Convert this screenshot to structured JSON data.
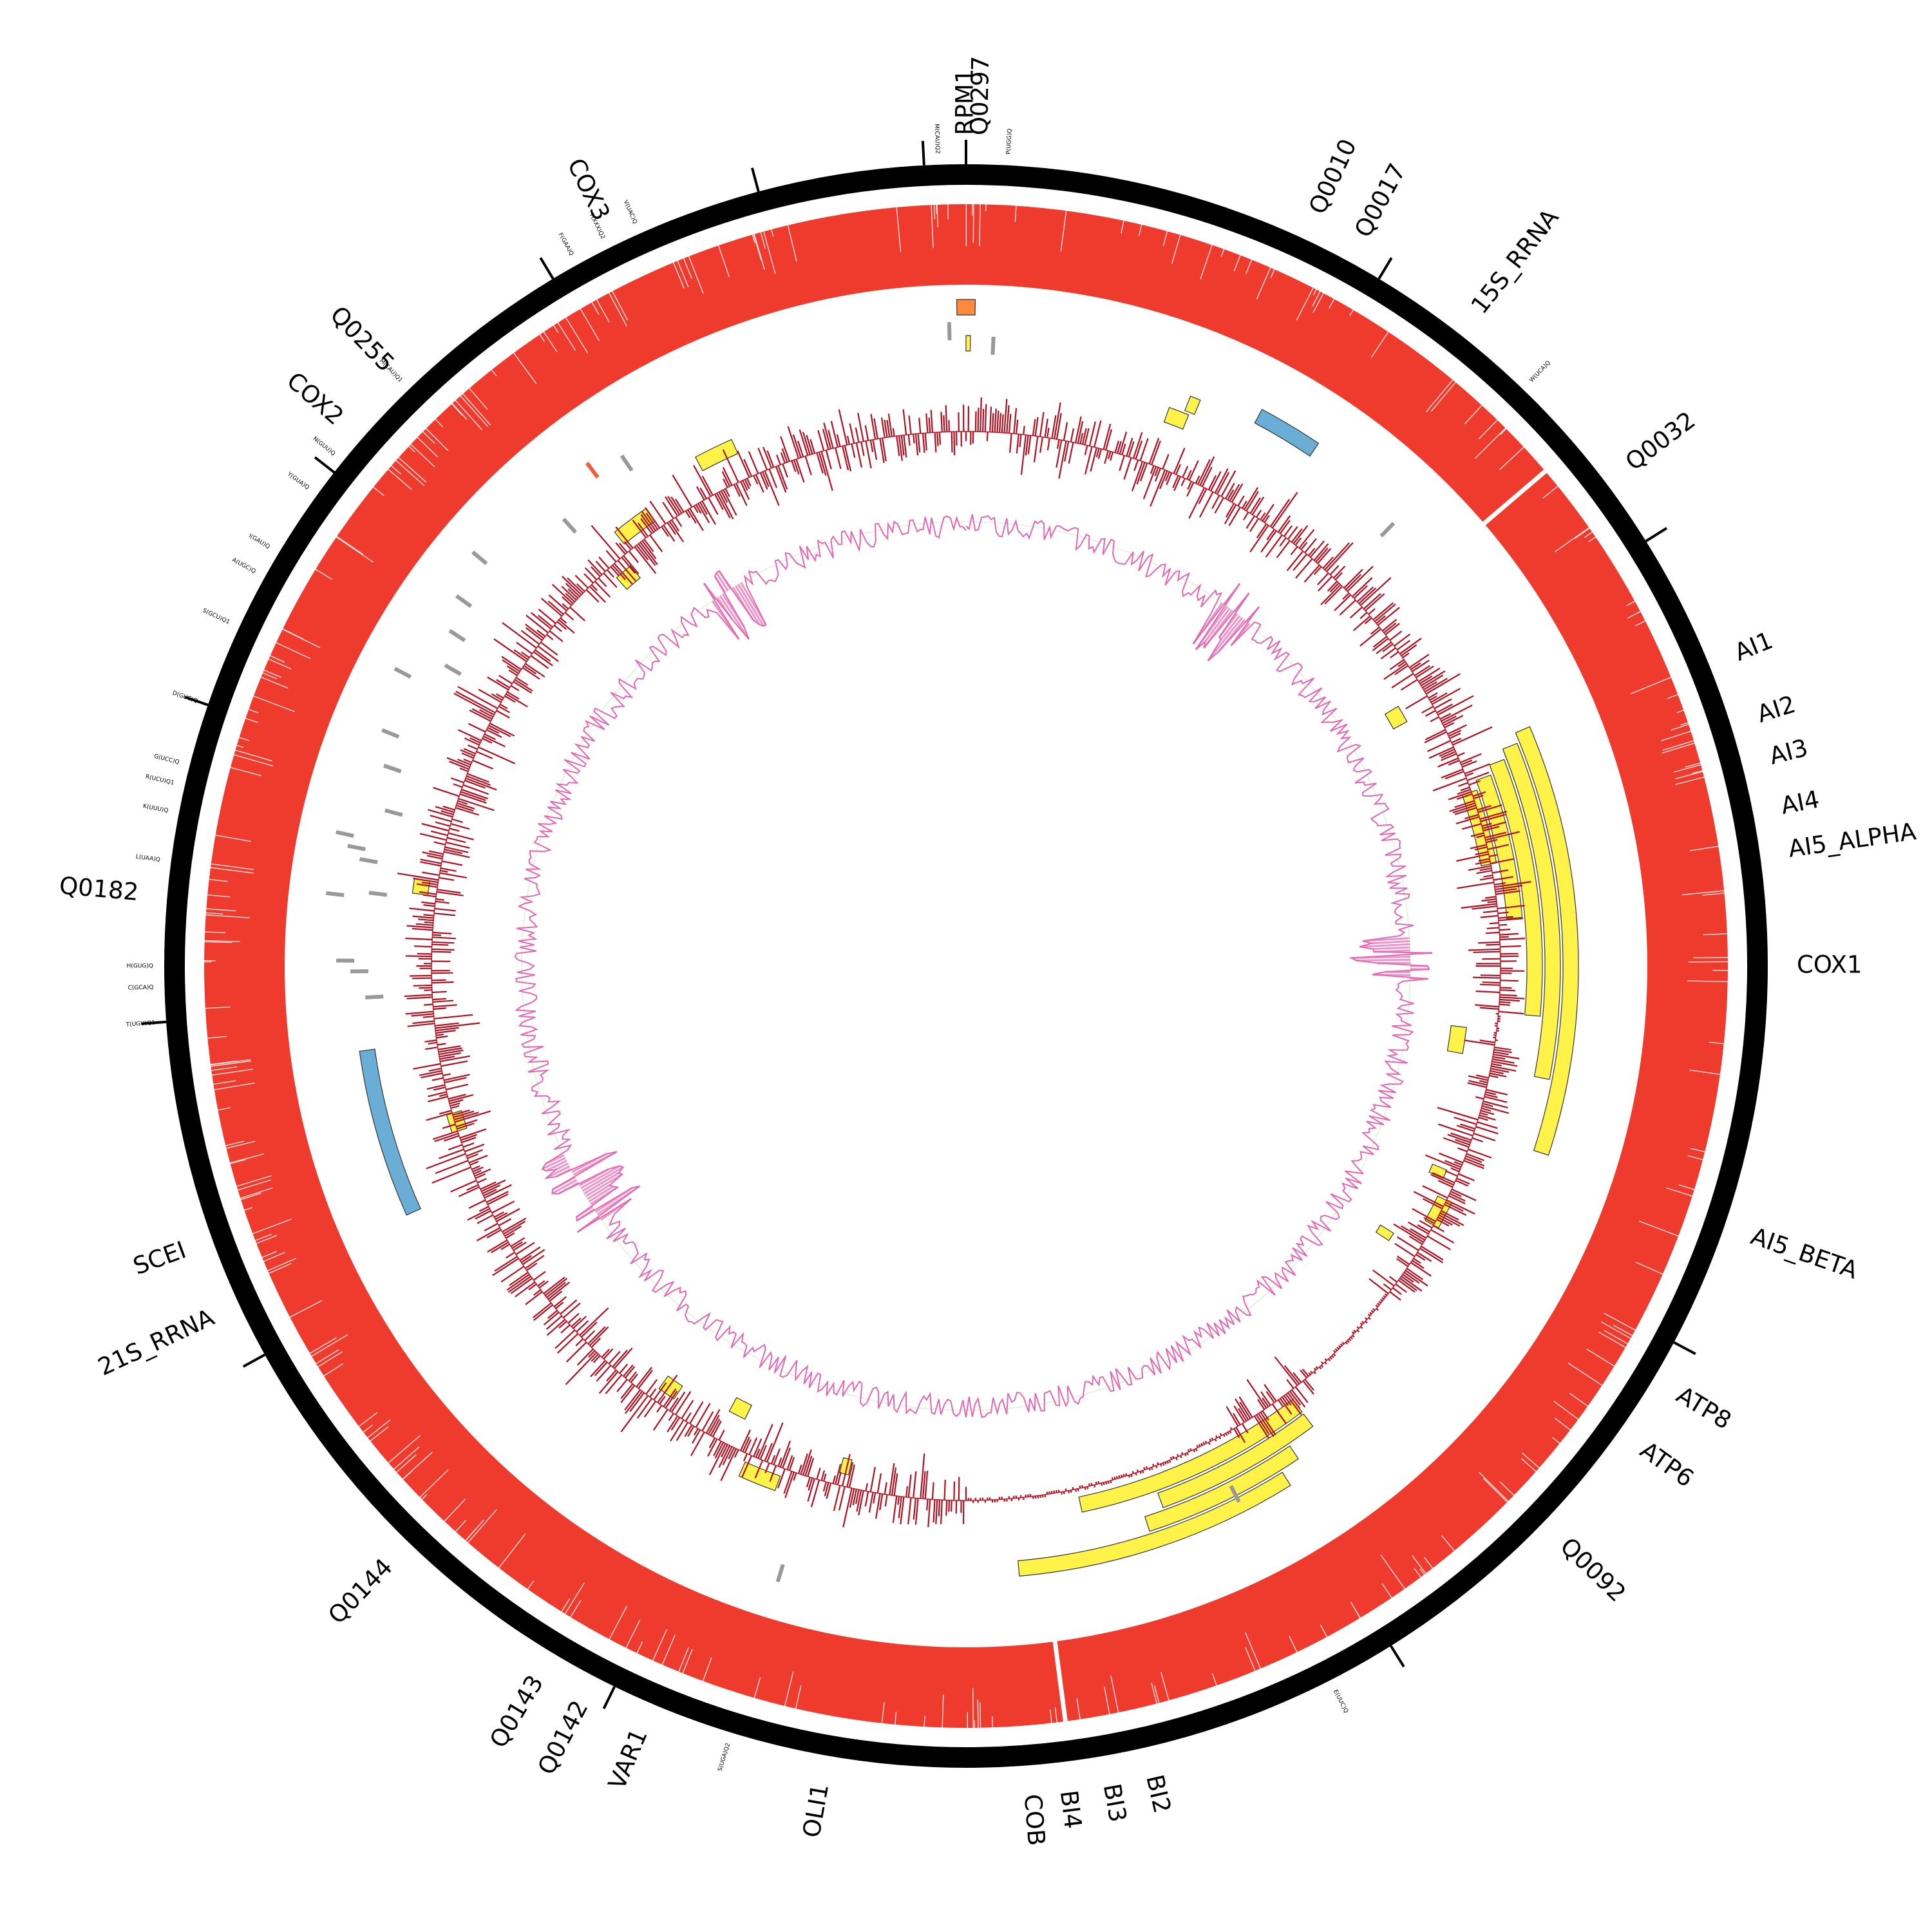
{
  "chart_data": {
    "type": "circular-genome-map",
    "colors": {
      "backbone": "#000000",
      "coverage": "#ee3b2e",
      "feature_yellow": "#fff34a",
      "feature_blue": "#6aaed6",
      "feature_orange": "#ff8a3d",
      "trna_mark": "#999999",
      "trna_mark_red": "#f25c3a",
      "gc_skew": "#b30d1e",
      "gc_content": "#e466b2",
      "gc_fill_light": "#e6f2e0"
    },
    "tick_angles_deg": [
      0,
      31,
      58,
      118,
      148,
      206,
      241,
      266,
      289,
      308,
      329,
      345,
      357
    ],
    "gene_labels": [
      {
        "text": "RPM1",
        "angle": 0
      },
      {
        "text": "Q0297",
        "angle": 1
      },
      {
        "text": "Q0010",
        "angle": 25
      },
      {
        "text": "Q0017",
        "angle": 28.5
      },
      {
        "text": "15S_RRNA",
        "angle": 38
      },
      {
        "text": "Q0032",
        "angle": 53
      },
      {
        "text": "AI1",
        "angle": 68
      },
      {
        "text": "AI2",
        "angle": 72.5
      },
      {
        "text": "AI3",
        "angle": 75.5
      },
      {
        "text": "AI4",
        "angle": 79
      },
      {
        "text": "AI5_ALPHA",
        "angle": 82
      },
      {
        "text": "COX1",
        "angle": 90
      },
      {
        "text": "AI5_BETA",
        "angle": 109
      },
      {
        "text": "ATP8",
        "angle": 121
      },
      {
        "text": "ATP6",
        "angle": 125.5
      },
      {
        "text": "Q0092",
        "angle": 134
      },
      {
        "text": "BI2",
        "angle": 167
      },
      {
        "text": "BI3",
        "angle": 170
      },
      {
        "text": "BI4",
        "angle": 173
      },
      {
        "text": "COB",
        "angle": 175.5
      },
      {
        "text": "OLI1",
        "angle": 190
      },
      {
        "text": "VAR1",
        "angle": 203
      },
      {
        "text": "Q0142",
        "angle": 207.5
      },
      {
        "text": "Q0143",
        "angle": 211
      },
      {
        "text": "Q0144",
        "angle": 224
      },
      {
        "text": "21S_RRNA",
        "angle": 245
      },
      {
        "text": "SCEI",
        "angle": 250
      },
      {
        "text": "Q0182",
        "angle": 275
      },
      {
        "text": "COX2",
        "angle": 311
      },
      {
        "text": "Q0255",
        "angle": 316
      },
      {
        "text": "COX3",
        "angle": 334
      }
    ],
    "trna_labels": [
      {
        "text": "M(CAU)Q2",
        "angle": 358
      },
      {
        "text": "P(UGG)Q",
        "angle": 3
      },
      {
        "text": "W(UCA)Q",
        "angle": 44
      },
      {
        "text": "E(UUC)Q",
        "angle": 153
      },
      {
        "text": "S(UGA)Q2",
        "angle": 197
      },
      {
        "text": "T(UGU)Q1",
        "angle": 266
      },
      {
        "text": "C(GCA)Q",
        "angle": 268.5
      },
      {
        "text": "H(GUG)Q",
        "angle": 270
      },
      {
        "text": "L(UAA)Q",
        "angle": 277.5
      },
      {
        "text": "K(UUU)Q",
        "angle": 281
      },
      {
        "text": "R(UCU)Q1",
        "angle": 283
      },
      {
        "text": "G(UCC)Q",
        "angle": 284.5
      },
      {
        "text": "D(GUC)Q",
        "angle": 289
      },
      {
        "text": "S(GCU)Q1",
        "angle": 295
      },
      {
        "text": "A(UGC)Q",
        "angle": 299
      },
      {
        "text": "I(GAU)Q",
        "angle": 301
      },
      {
        "text": "Y(GUA)Q",
        "angle": 306
      },
      {
        "text": "N(GUU)Q",
        "angle": 309
      },
      {
        "text": "M(CAU)Q1",
        "angle": 316
      },
      {
        "text": "F(GAA)Q",
        "angle": 331
      },
      {
        "text": "T(XXX)Q2",
        "angle": 333.5
      },
      {
        "text": "V(UAC)Q",
        "angle": 336
      }
    ],
    "coverage_gaps_deg": [
      49.5,
      172.5
    ],
    "features": [
      {
        "angle_start": 67,
        "angle_end": 108,
        "track": 10,
        "color": "yellow"
      },
      {
        "angle_start": 68,
        "angle_end": 101,
        "track": 9,
        "color": "yellow"
      },
      {
        "angle_start": 69,
        "angle_end": 95,
        "track": 8,
        "color": "yellow"
      },
      {
        "angle_start": 70,
        "angle_end": 85,
        "track": 7,
        "color": "yellow"
      },
      {
        "angle_start": 71,
        "angle_end": 79,
        "track": 6,
        "color": "yellow"
      },
      {
        "angle_start": 143,
        "angle_end": 168,
        "track": 7,
        "color": "yellow"
      },
      {
        "angle_start": 143,
        "angle_end": 160,
        "track": 8,
        "color": "yellow"
      },
      {
        "angle_start": 146,
        "angle_end": 162,
        "track": 9,
        "color": "yellow"
      },
      {
        "angle_start": 148,
        "angle_end": 175,
        "track": 10,
        "color": "yellow"
      },
      {
        "angle_start": 28,
        "angle_end": 34,
        "track": 11,
        "color": "blue"
      },
      {
        "angle_start": 246,
        "angle_end": 262,
        "track": 10,
        "color": "blue"
      },
      {
        "angle_start": 359.2,
        "angle_end": 0.8,
        "track": 13,
        "color": "orange"
      },
      {
        "angle_start": 0,
        "angle_end": 0.4,
        "track": 11,
        "color": "yellow"
      },
      {
        "angle_start": 21.5,
        "angle_end": 22.5,
        "track": 10,
        "color": "yellow"
      },
      {
        "angle_start": 20,
        "angle_end": 22,
        "track": 9,
        "color": "yellow"
      },
      {
        "angle_start": 59,
        "angle_end": 61,
        "track": 4,
        "color": "yellow"
      },
      {
        "angle_start": 332,
        "angle_end": 336,
        "track": 8,
        "color": "yellow"
      },
      {
        "angle_start": 321,
        "angle_end": 325,
        "track": 7,
        "color": "yellow"
      },
      {
        "angle_start": 318,
        "angle_end": 320,
        "track": 5,
        "color": "yellow"
      },
      {
        "angle_start": 277.5,
        "angle_end": 279,
        "track": 7,
        "color": "yellow"
      },
      {
        "angle_start": 252,
        "angle_end": 254,
        "track": 6,
        "color": "yellow"
      },
      {
        "angle_start": 214,
        "angle_end": 216,
        "track": 5,
        "color": "yellow"
      },
      {
        "angle_start": 206,
        "angle_end": 208,
        "track": 4,
        "color": "yellow"
      },
      {
        "angle_start": 200,
        "angle_end": 204,
        "track": 7,
        "color": "yellow"
      },
      {
        "angle_start": 193,
        "angle_end": 194,
        "track": 5,
        "color": "yellow"
      },
      {
        "angle_start": 97,
        "angle_end": 100,
        "track": 4,
        "color": "yellow"
      },
      {
        "angle_start": 113,
        "angle_end": 114,
        "track": 5,
        "color": "yellow"
      },
      {
        "angle_start": 116,
        "angle_end": 119,
        "track": 6,
        "color": "yellow"
      },
      {
        "angle_start": 122,
        "angle_end": 123,
        "track": 4,
        "color": "yellow"
      }
    ],
    "trna_marks": [
      {
        "angle": 358.5,
        "color": "grey"
      },
      {
        "angle": 2.5,
        "color": "grey"
      },
      {
        "angle": 44,
        "color": "grey"
      },
      {
        "angle": 153,
        "color": "grey"
      },
      {
        "angle": 197,
        "color": "grey"
      },
      {
        "angle": 323,
        "color": "red"
      },
      {
        "angle": 326,
        "color": "grey"
      },
      {
        "angle": 318,
        "color": "grey"
      },
      {
        "angle": 310,
        "color": "grey"
      },
      {
        "angle": 306,
        "color": "grey"
      },
      {
        "angle": 303,
        "color": "grey"
      },
      {
        "angle": 300,
        "color": "grey"
      },
      {
        "angle": 297.5,
        "color": "grey"
      },
      {
        "angle": 292,
        "color": "grey"
      },
      {
        "angle": 289,
        "color": "grey"
      },
      {
        "angle": 285,
        "color": "grey"
      },
      {
        "angle": 282,
        "color": "grey"
      },
      {
        "angle": 281,
        "color": "grey"
      },
      {
        "angle": 280,
        "color": "grey"
      },
      {
        "angle": 277,
        "color": "grey"
      },
      {
        "angle": 276.5,
        "color": "grey"
      },
      {
        "angle": 270.5,
        "color": "grey"
      },
      {
        "angle": 269.5,
        "color": "grey"
      },
      {
        "angle": 267,
        "color": "grey"
      }
    ]
  }
}
